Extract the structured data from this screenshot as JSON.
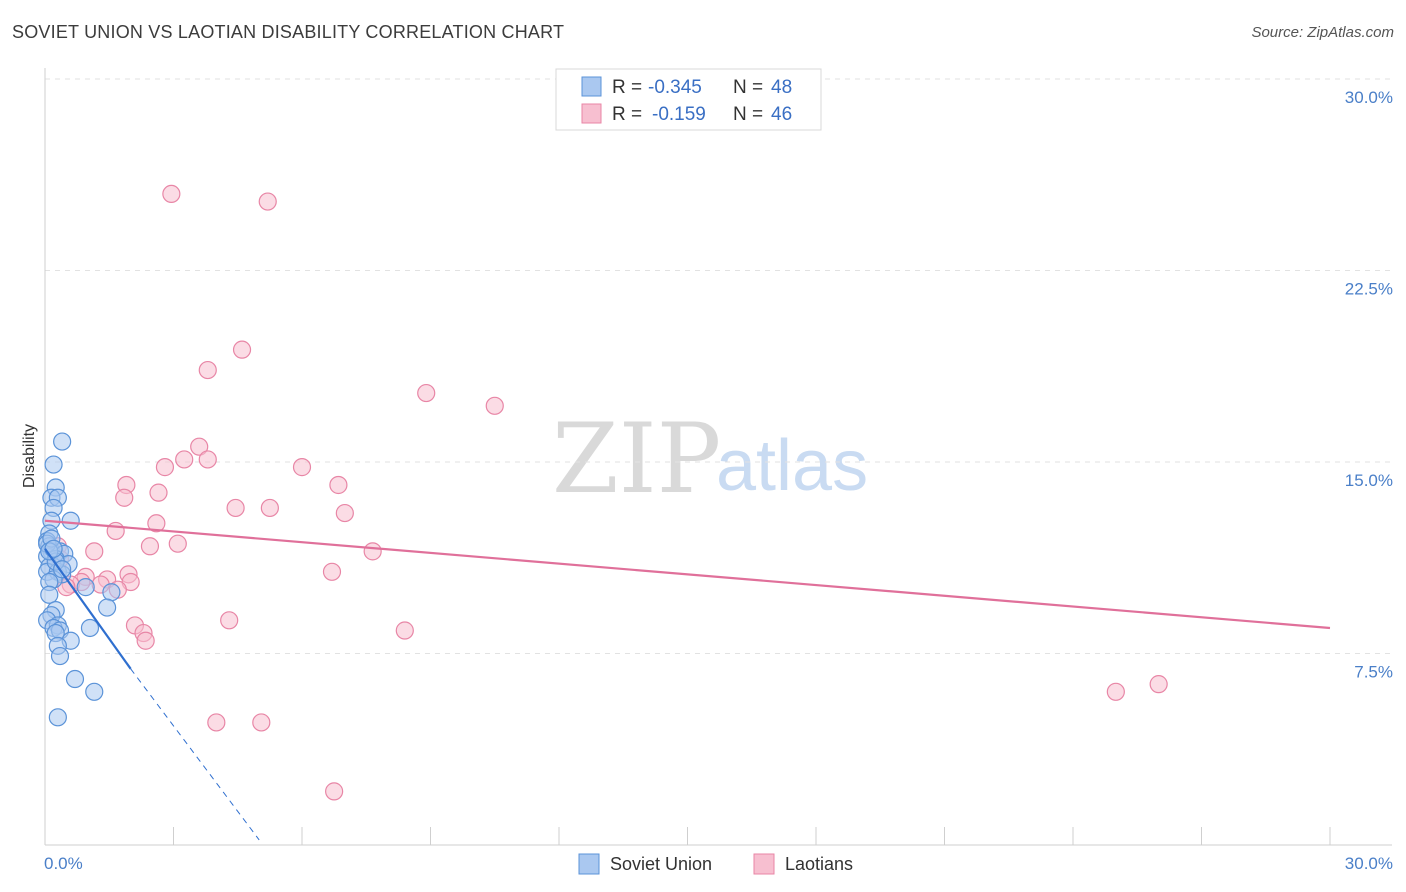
{
  "title": "SOVIET UNION VS LAOTIAN DISABILITY CORRELATION CHART",
  "source": "Source: ZipAtlas.com",
  "watermark": {
    "zip": "ZIP",
    "atlas": "atlas"
  },
  "colors": {
    "soviet_fill": "#aac8f0",
    "soviet_stroke": "#5b93d8",
    "soviet_line": "#2f6fcf",
    "laotian_fill": "#f7bfd0",
    "laotian_stroke": "#e886a6",
    "laotian_line": "#e0709a",
    "grid": "#e2e2e2",
    "axis_text": "#4a7fc8"
  },
  "legend": {
    "soviet": {
      "r_label": "R =",
      "r_value": "-0.345",
      "n_label": "N =",
      "n_value": "48"
    },
    "laotian": {
      "r_label": "R =",
      "r_value": "-0.159",
      "n_label": "N =",
      "n_value": "46"
    }
  },
  "bottom_legend": {
    "soviet": "Soviet Union",
    "laotian": "Laotians"
  },
  "chart_data": {
    "type": "scatter",
    "title": "SOVIET UNION VS LAOTIAN DISABILITY CORRELATION CHART",
    "xlabel": "",
    "ylabel": "Disability",
    "xlim": [
      0,
      30
    ],
    "ylim": [
      0,
      30
    ],
    "x_tick_labels": [
      "0.0%",
      "30.0%"
    ],
    "y_ticks": [
      7.5,
      15.0,
      22.5,
      30.0
    ],
    "y_tick_labels": [
      "7.5%",
      "15.0%",
      "22.5%",
      "30.0%"
    ],
    "grid": true,
    "legend_placement": "top-center",
    "series": [
      {
        "name": "Soviet Union",
        "r": -0.345,
        "n": 48,
        "trend": {
          "x0": 0.0,
          "y0": 11.6,
          "x1": 2.0,
          "y1": 6.9,
          "dash_to_x": 5.0,
          "dash_to_y": 0.2
        },
        "points": [
          [
            0.4,
            15.8
          ],
          [
            0.2,
            14.9
          ],
          [
            0.25,
            14.0
          ],
          [
            0.15,
            13.6
          ],
          [
            0.3,
            13.6
          ],
          [
            0.2,
            13.2
          ],
          [
            0.6,
            12.7
          ],
          [
            0.15,
            12.7
          ],
          [
            0.1,
            12.2
          ],
          [
            0.05,
            11.9
          ],
          [
            0.1,
            11.7
          ],
          [
            0.2,
            11.6
          ],
          [
            0.15,
            11.5
          ],
          [
            0.35,
            11.5
          ],
          [
            0.45,
            11.4
          ],
          [
            0.05,
            11.3
          ],
          [
            0.25,
            11.2
          ],
          [
            0.55,
            11.0
          ],
          [
            0.1,
            10.9
          ],
          [
            0.05,
            10.7
          ],
          [
            0.3,
            10.7
          ],
          [
            0.4,
            10.6
          ],
          [
            0.2,
            10.4
          ],
          [
            0.1,
            10.3
          ],
          [
            0.95,
            10.1
          ],
          [
            1.55,
            9.9
          ],
          [
            0.1,
            9.8
          ],
          [
            0.25,
            9.2
          ],
          [
            1.45,
            9.3
          ],
          [
            0.15,
            9.0
          ],
          [
            0.05,
            8.8
          ],
          [
            0.3,
            8.6
          ],
          [
            0.2,
            8.5
          ],
          [
            0.35,
            8.4
          ],
          [
            1.05,
            8.5
          ],
          [
            0.25,
            8.3
          ],
          [
            0.6,
            8.0
          ],
          [
            0.3,
            7.8
          ],
          [
            0.35,
            7.4
          ],
          [
            0.7,
            6.5
          ],
          [
            1.15,
            6.0
          ],
          [
            0.3,
            5.0
          ],
          [
            0.05,
            11.8
          ],
          [
            0.15,
            12.0
          ],
          [
            0.25,
            11.1
          ],
          [
            0.4,
            10.8
          ],
          [
            0.1,
            11.5
          ],
          [
            0.2,
            11.6
          ]
        ]
      },
      {
        "name": "Laotians",
        "r": -0.159,
        "n": 46,
        "trend": {
          "x0": 0.0,
          "y0": 12.7,
          "x1": 30.0,
          "y1": 8.5
        },
        "points": [
          [
            2.95,
            25.5
          ],
          [
            5.2,
            25.2
          ],
          [
            4.6,
            19.4
          ],
          [
            3.8,
            18.6
          ],
          [
            8.9,
            17.7
          ],
          [
            10.5,
            17.2
          ],
          [
            3.6,
            15.6
          ],
          [
            3.25,
            15.1
          ],
          [
            3.8,
            15.1
          ],
          [
            2.8,
            14.8
          ],
          [
            6.0,
            14.8
          ],
          [
            1.9,
            14.1
          ],
          [
            6.85,
            14.1
          ],
          [
            2.65,
            13.8
          ],
          [
            1.85,
            13.6
          ],
          [
            4.45,
            13.2
          ],
          [
            5.25,
            13.2
          ],
          [
            7.0,
            13.0
          ],
          [
            2.6,
            12.6
          ],
          [
            1.65,
            12.3
          ],
          [
            3.1,
            11.8
          ],
          [
            2.45,
            11.7
          ],
          [
            1.15,
            11.5
          ],
          [
            7.65,
            11.5
          ],
          [
            0.3,
            11.7
          ],
          [
            6.7,
            10.7
          ],
          [
            1.95,
            10.6
          ],
          [
            0.95,
            10.5
          ],
          [
            1.45,
            10.4
          ],
          [
            0.85,
            10.3
          ],
          [
            2.0,
            10.3
          ],
          [
            0.6,
            10.2
          ],
          [
            1.3,
            10.2
          ],
          [
            0.5,
            10.1
          ],
          [
            1.7,
            10.0
          ],
          [
            0.35,
            11.2
          ],
          [
            4.3,
            8.8
          ],
          [
            2.1,
            8.6
          ],
          [
            2.3,
            8.3
          ],
          [
            8.4,
            8.4
          ],
          [
            2.35,
            8.0
          ],
          [
            26.0,
            6.3
          ],
          [
            25.0,
            6.0
          ],
          [
            4.0,
            4.8
          ],
          [
            5.05,
            4.8
          ],
          [
            6.75,
            2.1
          ]
        ]
      }
    ]
  }
}
